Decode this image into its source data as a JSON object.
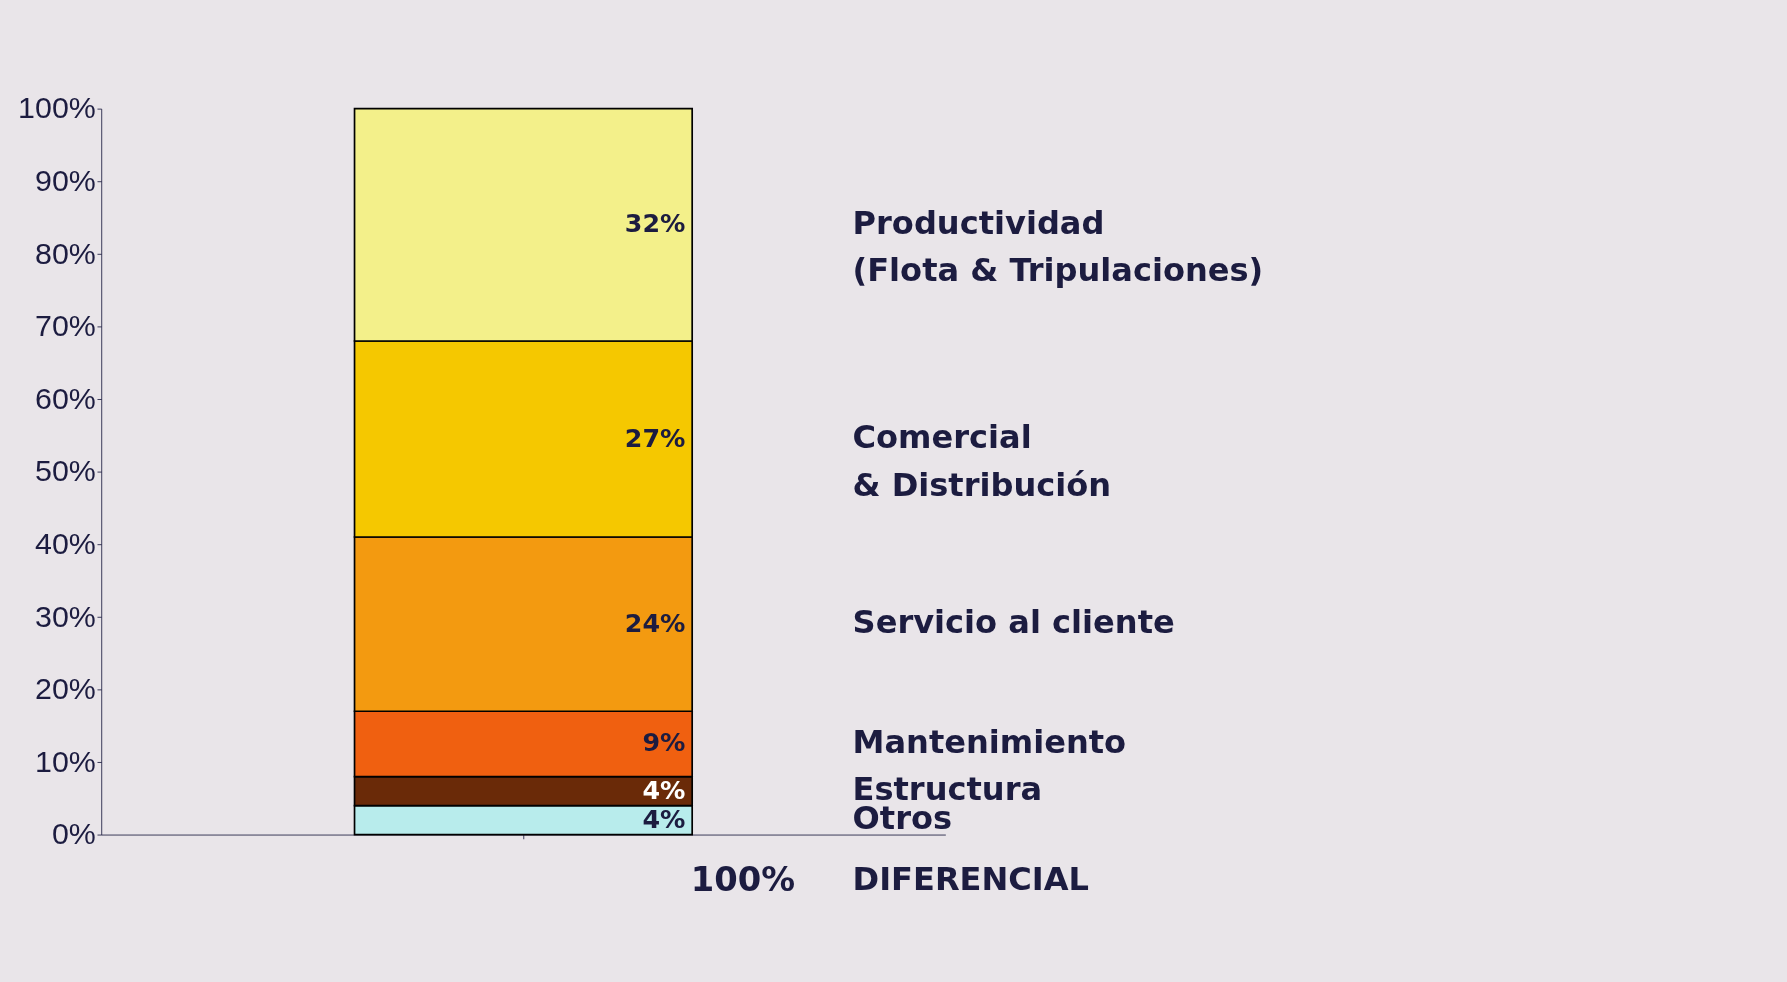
{
  "chart_data": {
    "type": "bar",
    "stacked": true,
    "categories": [
      null
    ],
    "series": [
      {
        "name": "Otros",
        "color": "#b8ecec",
        "values": [
          4
        ],
        "value_labels": [
          "4%"
        ]
      },
      {
        "name": "Estructura",
        "color": "#6a2a08",
        "values": [
          4
        ],
        "value_labels": [
          "4%"
        ]
      },
      {
        "name": "Mantenimiento",
        "color": "#f06010",
        "values": [
          9
        ],
        "value_labels": [
          "9%"
        ]
      },
      {
        "name": "Servicio al cliente",
        "color": "#f39a10",
        "values": [
          24
        ],
        "value_labels": [
          "24%"
        ]
      },
      {
        "name": "Comercial\n& Distribución",
        "color": "#f5c800",
        "values": [
          27
        ],
        "value_labels": [
          "27%"
        ]
      },
      {
        "name": "Productividad\n(Flota & Tripulaciones)",
        "color": "#f3f08a",
        "values": [
          32
        ],
        "value_labels": [
          "32%"
        ]
      }
    ],
    "ylim": [
      0,
      100
    ],
    "yticks": [
      {
        "value": 0,
        "label": "0%"
      },
      {
        "value": 10,
        "label": "10%"
      },
      {
        "value": 20,
        "label": "20%"
      },
      {
        "value": 30,
        "label": "30%"
      },
      {
        "value": 40,
        "label": "40%"
      },
      {
        "value": 50,
        "label": "50%"
      },
      {
        "value": 60,
        "label": "60%"
      },
      {
        "value": 70,
        "label": "70%"
      },
      {
        "value": 80,
        "label": "80%"
      },
      {
        "value": 90,
        "label": "90%"
      },
      {
        "value": 100,
        "label": "100%"
      }
    ],
    "totals": [
      "100%"
    ],
    "annotations": [
      "DIFERENCIAL"
    ],
    "grid": false
  }
}
